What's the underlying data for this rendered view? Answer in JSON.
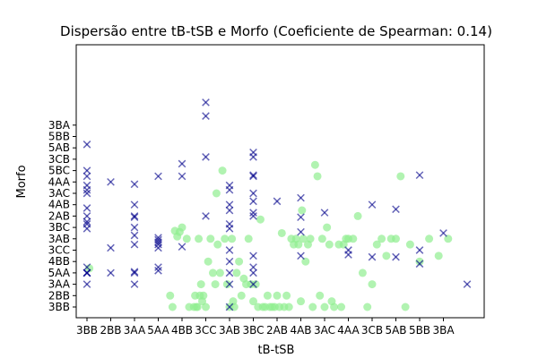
{
  "chart_data": {
    "type": "scatter",
    "title": "Dispersão entre tB-tSB e Morfo (Coeficiente de Spearman: 0.14)",
    "xlabel": "tB-tSB",
    "ylabel": "Morfo",
    "x_categories": [
      "3BB",
      "2BB",
      "3AA",
      "5AA",
      "4BB",
      "3CC",
      "3AB",
      "3BC",
      "2AB",
      "4AB",
      "3AC",
      "4AA",
      "3CB",
      "5AB",
      "5BB",
      "3BA"
    ],
    "y_categories": [
      "3BB",
      "2BB",
      "3AA",
      "5AA",
      "4BB",
      "3CC",
      "3AB",
      "3BC",
      "2AB",
      "4AB",
      "3AC",
      "4AA",
      "5BC",
      "3CB",
      "5AB",
      "5BB",
      "3BA"
    ],
    "grid": false,
    "series": [
      {
        "marker": "circle",
        "color": "#90ee90",
        "points": [
          {
            "x": 0.1,
            "y": 3.4
          },
          {
            "x": 3.5,
            "y": 1.0
          },
          {
            "x": 3.6,
            "y": 0.0
          },
          {
            "x": 3.7,
            "y": 6.7
          },
          {
            "x": 3.8,
            "y": 6.2
          },
          {
            "x": 3.9,
            "y": 6.6
          },
          {
            "x": 4.0,
            "y": 7.0
          },
          {
            "x": 4.2,
            "y": 6.0
          },
          {
            "x": 4.3,
            "y": 0.0
          },
          {
            "x": 4.5,
            "y": 0.0
          },
          {
            "x": 4.55,
            "y": 1.0
          },
          {
            "x": 4.6,
            "y": 0.0
          },
          {
            "x": 4.65,
            "y": 0.0
          },
          {
            "x": 4.7,
            "y": 6.0
          },
          {
            "x": 4.75,
            "y": 1.0
          },
          {
            "x": 4.8,
            "y": 2.0
          },
          {
            "x": 4.85,
            "y": 0.5
          },
          {
            "x": 4.9,
            "y": 1.0
          },
          {
            "x": 5.0,
            "y": 0.0
          },
          {
            "x": 5.1,
            "y": 4.0
          },
          {
            "x": 5.2,
            "y": 6.0
          },
          {
            "x": 5.3,
            "y": 3.0
          },
          {
            "x": 5.4,
            "y": 2.0
          },
          {
            "x": 5.45,
            "y": 10.0
          },
          {
            "x": 5.5,
            "y": 5.5
          },
          {
            "x": 5.6,
            "y": 3.0
          },
          {
            "x": 5.7,
            "y": 12.0
          },
          {
            "x": 5.8,
            "y": 6.0
          },
          {
            "x": 5.9,
            "y": 2.0
          },
          {
            "x": 6.0,
            "y": 0.0
          },
          {
            "x": 6.1,
            "y": 6.0
          },
          {
            "x": 6.15,
            "y": 0.5
          },
          {
            "x": 6.2,
            "y": 0.0
          },
          {
            "x": 6.3,
            "y": 3.0
          },
          {
            "x": 6.4,
            "y": 4.0
          },
          {
            "x": 6.5,
            "y": 1.0
          },
          {
            "x": 6.6,
            "y": 2.5
          },
          {
            "x": 6.7,
            "y": 2.0
          },
          {
            "x": 6.8,
            "y": 6.0
          },
          {
            "x": 6.9,
            "y": 2.0
          },
          {
            "x": 7.0,
            "y": 0.5
          },
          {
            "x": 7.1,
            "y": 2.0
          },
          {
            "x": 7.2,
            "y": 0.0
          },
          {
            "x": 7.3,
            "y": 7.7
          },
          {
            "x": 7.4,
            "y": 0.0
          },
          {
            "x": 7.5,
            "y": 0.0
          },
          {
            "x": 7.6,
            "y": 1.0
          },
          {
            "x": 7.7,
            "y": 0.0
          },
          {
            "x": 7.8,
            "y": 0.0
          },
          {
            "x": 7.9,
            "y": 0.0
          },
          {
            "x": 8.0,
            "y": 1.0
          },
          {
            "x": 8.1,
            "y": 0.0
          },
          {
            "x": 8.2,
            "y": 6.5
          },
          {
            "x": 8.3,
            "y": 0.0
          },
          {
            "x": 8.4,
            "y": 1.0
          },
          {
            "x": 8.5,
            "y": 0.0
          },
          {
            "x": 8.6,
            "y": 6.0
          },
          {
            "x": 8.7,
            "y": 5.5
          },
          {
            "x": 8.8,
            "y": 6.0
          },
          {
            "x": 8.9,
            "y": 5.5
          },
          {
            "x": 9.0,
            "y": 0.5
          },
          {
            "x": 9.05,
            "y": 8.5
          },
          {
            "x": 9.1,
            "y": 6.0
          },
          {
            "x": 9.2,
            "y": 4.0
          },
          {
            "x": 9.3,
            "y": 5.5
          },
          {
            "x": 9.4,
            "y": 6.0
          },
          {
            "x": 9.5,
            "y": 0.0
          },
          {
            "x": 9.6,
            "y": 12.5
          },
          {
            "x": 9.7,
            "y": 11.5
          },
          {
            "x": 9.8,
            "y": 1.0
          },
          {
            "x": 9.9,
            "y": 6.0
          },
          {
            "x": 10.0,
            "y": 0.0
          },
          {
            "x": 10.1,
            "y": 7.0
          },
          {
            "x": 10.2,
            "y": 5.5
          },
          {
            "x": 10.3,
            "y": 0.5
          },
          {
            "x": 10.4,
            "y": 0.0
          },
          {
            "x": 10.6,
            "y": 5.5
          },
          {
            "x": 10.7,
            "y": 0.0
          },
          {
            "x": 10.8,
            "y": 5.5
          },
          {
            "x": 10.9,
            "y": 6.0
          },
          {
            "x": 11.0,
            "y": 6.0
          },
          {
            "x": 11.2,
            "y": 6.0
          },
          {
            "x": 11.4,
            "y": 8.0
          },
          {
            "x": 11.6,
            "y": 3.0
          },
          {
            "x": 11.8,
            "y": 0.0
          },
          {
            "x": 12.0,
            "y": 2.0
          },
          {
            "x": 12.2,
            "y": 5.5
          },
          {
            "x": 12.4,
            "y": 6.0
          },
          {
            "x": 12.6,
            "y": 4.5
          },
          {
            "x": 12.8,
            "y": 6.0
          },
          {
            "x": 13.0,
            "y": 6.0
          },
          {
            "x": 13.2,
            "y": 11.5
          },
          {
            "x": 13.4,
            "y": 0.0
          },
          {
            "x": 13.6,
            "y": 5.5
          },
          {
            "x": 14.0,
            "y": 4.0
          },
          {
            "x": 14.4,
            "y": 6.0
          },
          {
            "x": 14.8,
            "y": 4.5
          },
          {
            "x": 15.2,
            "y": 6.0
          }
        ]
      },
      {
        "marker": "x",
        "color": "#00008b",
        "points": [
          {
            "x": 0.0,
            "y": 3.0
          },
          {
            "x": 0.0,
            "y": 3.0
          },
          {
            "x": 0.0,
            "y": 3.0
          },
          {
            "x": 0.0,
            "y": 3.5
          },
          {
            "x": 0.0,
            "y": 2.0
          },
          {
            "x": 0.0,
            "y": 6.9
          },
          {
            "x": 0.0,
            "y": 7.3
          },
          {
            "x": 0.0,
            "y": 7.5
          },
          {
            "x": 0.0,
            "y": 8.0
          },
          {
            "x": 0.0,
            "y": 10.0
          },
          {
            "x": 0.0,
            "y": 10.3
          },
          {
            "x": 0.0,
            "y": 10.7
          },
          {
            "x": 0.0,
            "y": 11.5
          },
          {
            "x": 0.0,
            "y": 8.7
          },
          {
            "x": 0.0,
            "y": 14.3
          },
          {
            "x": 0.0,
            "y": 12.0
          },
          {
            "x": 1.0,
            "y": 3.0
          },
          {
            "x": 1.0,
            "y": 5.2
          },
          {
            "x": 1.0,
            "y": 11.0
          },
          {
            "x": 2.0,
            "y": 2.0
          },
          {
            "x": 2.0,
            "y": 3.0
          },
          {
            "x": 2.0,
            "y": 3.1
          },
          {
            "x": 2.0,
            "y": 5.5
          },
          {
            "x": 2.0,
            "y": 6.3
          },
          {
            "x": 2.0,
            "y": 7.0
          },
          {
            "x": 2.0,
            "y": 7.9
          },
          {
            "x": 2.0,
            "y": 8.0
          },
          {
            "x": 2.0,
            "y": 9.0
          },
          {
            "x": 2.0,
            "y": 10.8
          },
          {
            "x": 3.0,
            "y": 3.2
          },
          {
            "x": 3.0,
            "y": 3.5
          },
          {
            "x": 3.0,
            "y": 5.2
          },
          {
            "x": 3.0,
            "y": 5.5
          },
          {
            "x": 3.0,
            "y": 5.7
          },
          {
            "x": 3.0,
            "y": 5.9
          },
          {
            "x": 3.0,
            "y": 6.1
          },
          {
            "x": 3.0,
            "y": 11.5
          },
          {
            "x": 4.0,
            "y": 5.3
          },
          {
            "x": 4.0,
            "y": 11.5
          },
          {
            "x": 4.0,
            "y": 12.6
          },
          {
            "x": 5.0,
            "y": 13.2
          },
          {
            "x": 5.0,
            "y": 16.8
          },
          {
            "x": 5.0,
            "y": 18.0
          },
          {
            "x": 5.0,
            "y": 8.0
          },
          {
            "x": 6.0,
            "y": 0.0
          },
          {
            "x": 6.0,
            "y": 2.0
          },
          {
            "x": 6.0,
            "y": 3.0
          },
          {
            "x": 6.0,
            "y": 4.0
          },
          {
            "x": 6.0,
            "y": 5.0
          },
          {
            "x": 6.0,
            "y": 6.9
          },
          {
            "x": 6.0,
            "y": 7.3
          },
          {
            "x": 6.0,
            "y": 8.5
          },
          {
            "x": 6.0,
            "y": 9.0
          },
          {
            "x": 6.0,
            "y": 10.3
          },
          {
            "x": 6.0,
            "y": 10.7
          },
          {
            "x": 7.0,
            "y": 2.0
          },
          {
            "x": 7.0,
            "y": 3.0
          },
          {
            "x": 7.0,
            "y": 3.5
          },
          {
            "x": 7.0,
            "y": 4.5
          },
          {
            "x": 7.0,
            "y": 8.0
          },
          {
            "x": 7.0,
            "y": 8.3
          },
          {
            "x": 7.0,
            "y": 9.3
          },
          {
            "x": 7.0,
            "y": 10.0
          },
          {
            "x": 7.0,
            "y": 11.5
          },
          {
            "x": 7.0,
            "y": 11.6
          },
          {
            "x": 7.0,
            "y": 13.2
          },
          {
            "x": 7.0,
            "y": 13.6
          },
          {
            "x": 8.0,
            "y": 9.3
          },
          {
            "x": 9.0,
            "y": 4.5
          },
          {
            "x": 9.0,
            "y": 6.6
          },
          {
            "x": 9.0,
            "y": 7.9
          },
          {
            "x": 9.0,
            "y": 9.6
          },
          {
            "x": 10.0,
            "y": 8.3
          },
          {
            "x": 11.0,
            "y": 4.6
          },
          {
            "x": 11.0,
            "y": 5.0
          },
          {
            "x": 12.0,
            "y": 9.0
          },
          {
            "x": 12.0,
            "y": 4.4
          },
          {
            "x": 13.0,
            "y": 8.6
          },
          {
            "x": 13.0,
            "y": 4.4
          },
          {
            "x": 14.0,
            "y": 11.6
          },
          {
            "x": 14.0,
            "y": 5.0
          },
          {
            "x": 14.0,
            "y": 3.8
          },
          {
            "x": 15.0,
            "y": 6.5
          },
          {
            "x": 16.0,
            "y": 2.0
          }
        ]
      }
    ]
  }
}
